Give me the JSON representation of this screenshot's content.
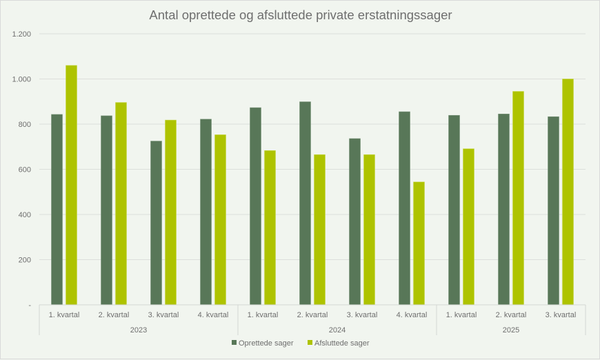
{
  "chart_data": {
    "type": "bar",
    "title": "Antal oprettede og afsluttede private erstatningssager",
    "xlabel": "",
    "ylabel": "",
    "ylim": [
      0,
      1200
    ],
    "yticks": [
      0,
      200,
      400,
      600,
      800,
      1000,
      1200
    ],
    "ytick_labels": [
      "-",
      "200",
      "400",
      "600",
      "800",
      "1.000",
      "1.200"
    ],
    "grid": true,
    "legend_position": "bottom",
    "categories": [
      "1. kvartal",
      "2. kvartal",
      "3. kvartal",
      "4. kvartal",
      "1. kvartal",
      "2. kvartal",
      "3. kvartal",
      "4. kvartal",
      "1. kvartal",
      "2. kvartal",
      "3. kvartal"
    ],
    "groups": [
      {
        "label": "2023",
        "count": 4
      },
      {
        "label": "2024",
        "count": 4
      },
      {
        "label": "2025",
        "count": 3
      }
    ],
    "series": [
      {
        "name": "Oprettede sager",
        "color": "#587758",
        "values": [
          843,
          837,
          725,
          822,
          873,
          899,
          736,
          855,
          839,
          845,
          833
        ]
      },
      {
        "name": "Afsluttede sager",
        "color": "#aec300",
        "values": [
          1060,
          896,
          818,
          753,
          683,
          665,
          665,
          544,
          691,
          945,
          1000
        ]
      }
    ]
  }
}
